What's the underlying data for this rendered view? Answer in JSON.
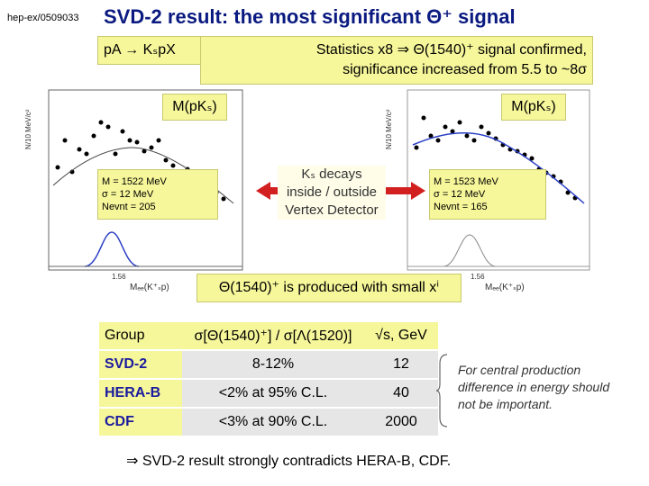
{
  "ref": "hep-ex/0509033",
  "title": "SVD-2 result: the most significant Θ⁺ signal",
  "reaction": "pA → KₛpX",
  "stats": {
    "line1": "Statistics x8 ⇒ Θ(1540)⁺ signal confirmed,",
    "line2": "significance increased from 5.5 to ~8σ"
  },
  "mass_label_left": "M(pKₛ)",
  "mass_label_right": "M(pKₛ)",
  "fit_left": {
    "line1": "M = 1522 MeV",
    "line2": "σ = 12 MeV",
    "line3": "Nevnt = 205"
  },
  "fit_right": {
    "line1": "M = 1523 MeV",
    "line2": "σ = 12 MeV",
    "line3": "Nevnt = 165"
  },
  "decays": {
    "line1": "Kₛ decays",
    "line2": "inside / outside",
    "line3": "Vertex Detector"
  },
  "plot_left": {
    "ylabel": "N/10 MeV/c²",
    "xlabel": "Mₑₑ(K⁺ₛp)",
    "tick": "1.56"
  },
  "plot_right": {
    "ylabel": "N/10 MeV/c²",
    "xlabel": "Mₑₑ(K⁺ₛp)",
    "tick": "1.56"
  },
  "produced": "Θ(1540)⁺ is produced with small xⁱ",
  "table": {
    "headers": [
      "Group",
      "σ[Θ(1540)⁺] / σ[Λ(1520)]",
      "√s, GeV"
    ],
    "rows": [
      [
        "SVD-2",
        "8-12%",
        "12"
      ],
      [
        "HERA-B",
        "<2% at 95% C.L.",
        "40"
      ],
      [
        "CDF",
        "<3% at 90% C.L.",
        "2000"
      ]
    ]
  },
  "note": "For central production difference in energy should not be important.",
  "conclusion": "⇒ SVD-2 result strongly contradicts HERA-B, CDF."
}
